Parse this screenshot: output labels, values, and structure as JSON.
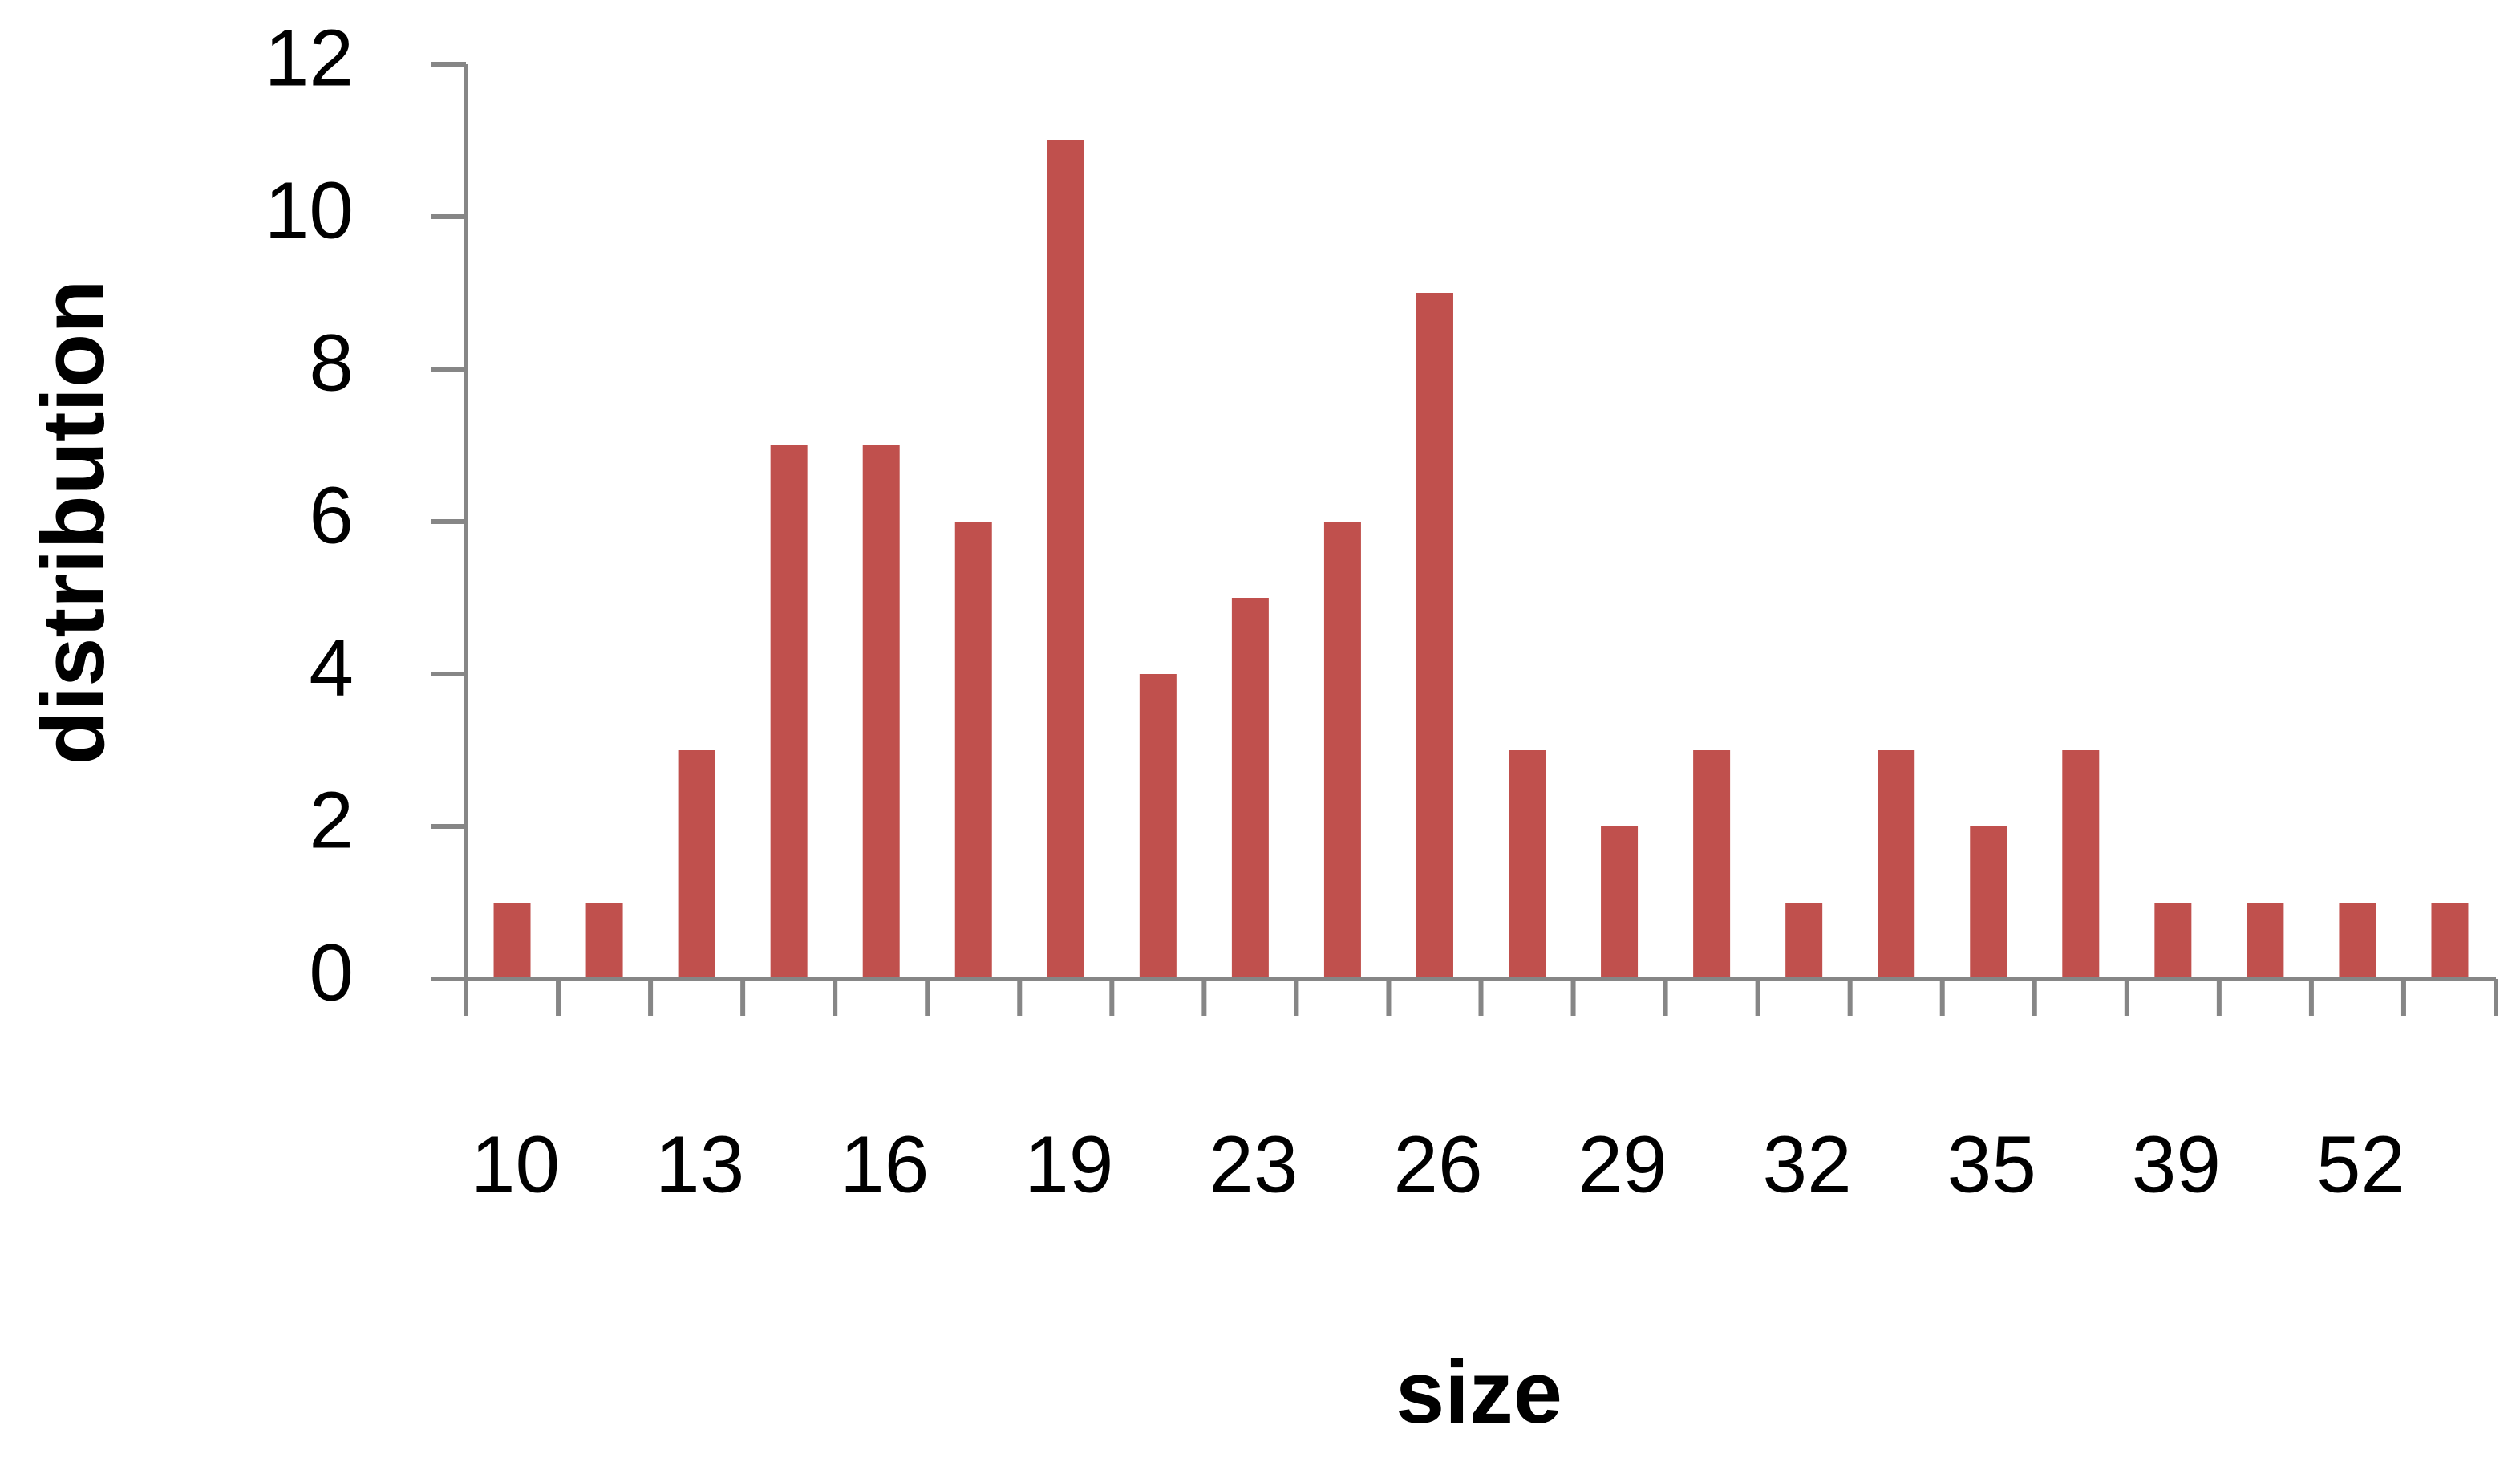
{
  "chart_data": {
    "type": "bar",
    "x_label": "size",
    "y_label": "distribution",
    "categories": [
      "10",
      null,
      "13",
      null,
      "16",
      null,
      "19",
      null,
      "23",
      null,
      "26",
      null,
      "29",
      null,
      "32",
      null,
      "35",
      null,
      "39",
      null,
      "52",
      null
    ],
    "values": [
      1,
      1,
      3,
      7,
      7,
      6,
      11,
      4,
      5,
      6,
      9,
      3,
      2,
      3,
      1,
      3,
      2,
      3,
      1,
      1,
      1,
      1
    ],
    "color": "#c0504d",
    "ylim": [
      0,
      12
    ],
    "yticks": [
      0,
      2,
      4,
      6,
      8,
      10,
      12
    ],
    "grid": false
  }
}
